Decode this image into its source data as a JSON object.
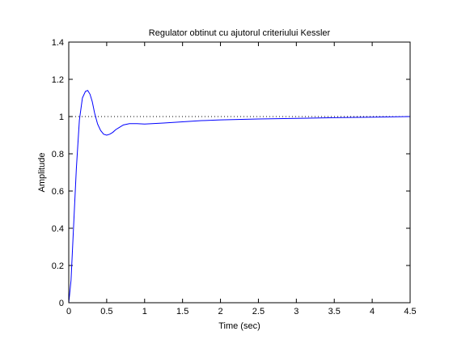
{
  "chart_data": {
    "type": "line",
    "title": "Regulator obtinut cu ajutorul criteriului Kessler",
    "xlabel": "Time (sec)",
    "ylabel": "Amplitude",
    "xlim": [
      0,
      4.5
    ],
    "ylim": [
      0,
      1.4
    ],
    "x_ticks": [
      0,
      0.5,
      1,
      1.5,
      2,
      2.5,
      3,
      3.5,
      4,
      4.5
    ],
    "x_tick_labels": [
      "0",
      "0.5",
      "1",
      "1.5",
      "2",
      "2.5",
      "3",
      "3.5",
      "4",
      "4.5"
    ],
    "y_ticks": [
      0,
      0.2,
      0.4,
      0.6,
      0.8,
      1.0,
      1.2,
      1.4
    ],
    "y_tick_labels": [
      "0",
      "0.2",
      "0.4",
      "0.6",
      "0.8",
      "1",
      "1.2",
      "1.4"
    ],
    "grid": false,
    "reference_line": {
      "y": 1.0,
      "style": "dotted",
      "color": "#000000"
    },
    "series": [
      {
        "color": "#0000ff",
        "x": [
          0,
          0.03,
          0.06,
          0.1,
          0.14,
          0.18,
          0.22,
          0.25,
          0.28,
          0.31,
          0.34,
          0.38,
          0.42,
          0.46,
          0.5,
          0.54,
          0.58,
          0.62,
          0.66,
          0.72,
          0.8,
          0.9,
          1.0,
          1.1,
          1.25,
          1.5,
          1.75,
          2.0,
          2.5,
          3.0,
          3.5,
          4.0,
          4.5
        ],
        "y": [
          0,
          0.12,
          0.38,
          0.72,
          0.98,
          1.1,
          1.135,
          1.14,
          1.12,
          1.08,
          1.02,
          0.96,
          0.925,
          0.905,
          0.9,
          0.905,
          0.915,
          0.93,
          0.94,
          0.955,
          0.962,
          0.962,
          0.96,
          0.962,
          0.965,
          0.972,
          0.978,
          0.982,
          0.987,
          0.99,
          0.994,
          0.997,
          1.0
        ]
      }
    ]
  }
}
